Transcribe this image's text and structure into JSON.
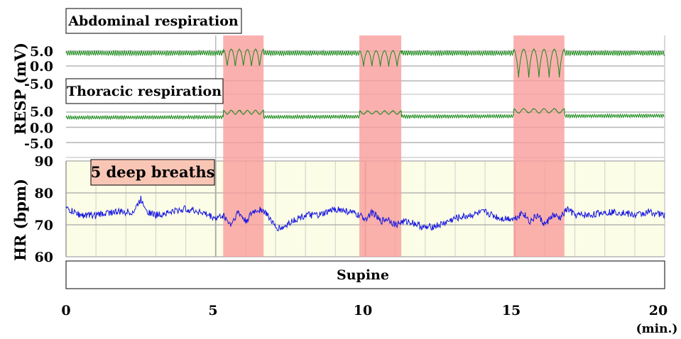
{
  "chart_data": {
    "type": "line",
    "xlabel": "(min.)",
    "xlim": [
      0,
      20
    ],
    "x_ticks": [
      "0",
      "5",
      "10",
      "15",
      "20"
    ],
    "highlight_label": "5 deep breaths",
    "highlight_color": "#fa9c9c",
    "deep_breath_periods": [
      [
        5.25,
        6.6
      ],
      [
        9.8,
        11.2
      ],
      [
        14.95,
        16.65
      ]
    ],
    "posture_label": "Supine",
    "resp_ylabel": "RESP (mV)",
    "hr_ylabel": "HR (bpm)",
    "panels": [
      {
        "title": "Abdominal respiration",
        "ylim": [
          -5,
          5
        ],
        "y_ticks": [
          "5.0",
          "0.0",
          "-5.0"
        ],
        "color": "#1a8a1a",
        "baseline_mV": 4.3,
        "deep_breath_range_mV": [
          [
            5.5,
            -0.5
          ],
          [
            5.0,
            -0.3
          ],
          [
            5.5,
            -4.0
          ]
        ]
      },
      {
        "title": "Thoracic respiration",
        "ylim": [
          -5,
          5
        ],
        "y_ticks": [
          "5.0",
          "0.0",
          "-5.0"
        ],
        "color": "#1a8a1a",
        "baseline_mV": 3.5,
        "deep_breath_range_mV": [
          [
            5.5,
            4.2
          ],
          [
            5.3,
            4.2
          ],
          [
            6.0,
            4.6
          ]
        ]
      },
      {
        "title": "HR",
        "ylim": [
          60,
          90
        ],
        "y_ticks": [
          "90",
          "80",
          "70",
          "60"
        ],
        "color": "#1515e0",
        "background": "#fbfde6",
        "x": [
          0,
          0.5,
          1,
          1.5,
          2,
          2.25,
          2.5,
          2.75,
          3,
          3.5,
          4,
          4.5,
          5,
          5.25,
          5.5,
          5.75,
          6,
          6.25,
          6.5,
          6.75,
          7,
          7.25,
          7.5,
          8,
          8.5,
          9,
          9.5,
          10,
          10.25,
          10.5,
          10.75,
          11,
          11.25,
          11.5,
          12,
          12.5,
          13,
          13.5,
          14,
          14.5,
          15,
          15.25,
          15.5,
          15.75,
          16,
          16.25,
          16.5,
          16.75,
          17,
          17.5,
          18,
          18.5,
          19,
          19.5,
          20
        ],
        "values": [
          75,
          73,
          73,
          74,
          74,
          74,
          78,
          74,
          73,
          74,
          75,
          74,
          72,
          73,
          70,
          74,
          71,
          74,
          75,
          73,
          69,
          69,
          71,
          73,
          73,
          75,
          74,
          72,
          74,
          71,
          72,
          70,
          71,
          71,
          69,
          70,
          72,
          73,
          74,
          72,
          72,
          74,
          71,
          73,
          70,
          73,
          72,
          75,
          73,
          73,
          74,
          74,
          73,
          74,
          73
        ]
      }
    ]
  }
}
